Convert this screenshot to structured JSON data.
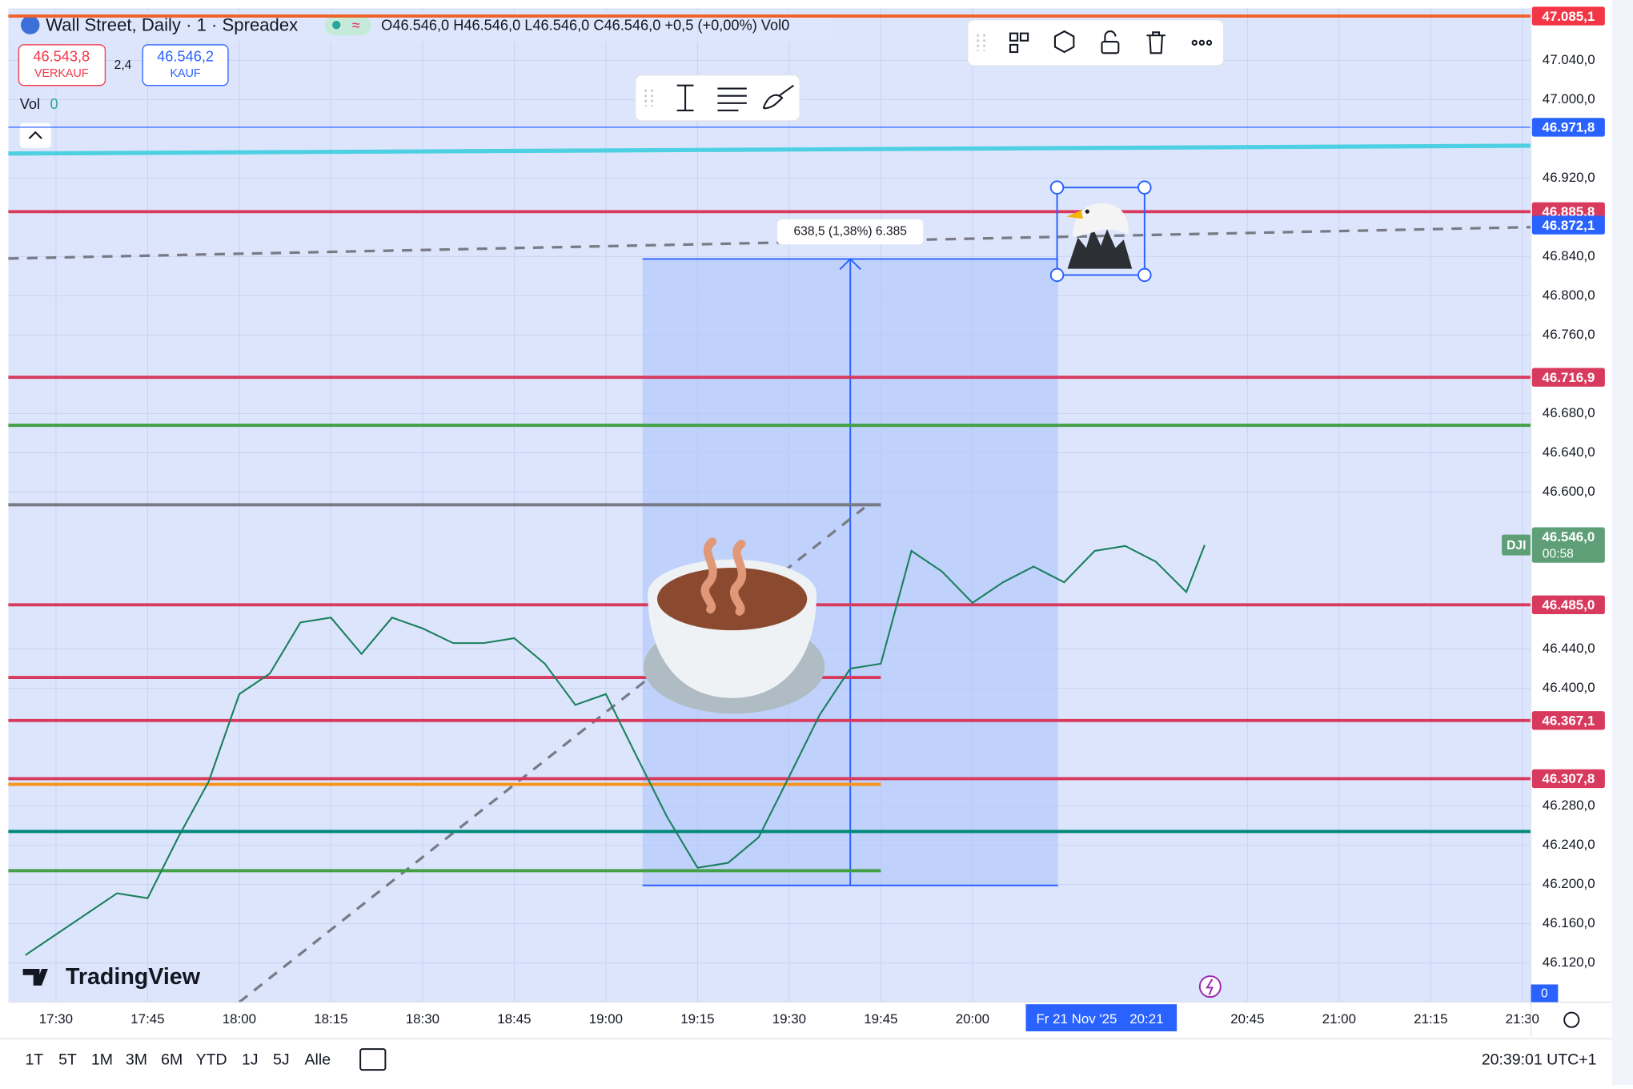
{
  "header": {
    "symbol": "Wall Street, Daily · 1 · Spreadex",
    "ohlc": "O46.546,0 H46.546,0 L46.546,0 C46.546,0 +0,5 (+0,00%) Vol0"
  },
  "trade": {
    "sell_price": "46.543,8",
    "sell_label": "VERKAUF",
    "spread": "2,4",
    "buy_price": "46.546,2",
    "buy_label": "KAUF"
  },
  "volume_legend": {
    "label": "Vol",
    "value": "0"
  },
  "volume_scale": "0",
  "logo": "TradingView",
  "ranges": [
    "1T",
    "5T",
    "1M",
    "3M",
    "6M",
    "YTD",
    "1J",
    "5J",
    "Alle"
  ],
  "clock": "20:39:01 UTC+1",
  "chart_data": {
    "type": "line",
    "x": [
      1045,
      1050,
      1055,
      1060,
      1065,
      1070,
      1075,
      1080,
      1085,
      1090,
      1095,
      1100,
      1105,
      1110,
      1115,
      1120,
      1125,
      1130,
      1135,
      1140,
      1145,
      1150,
      1155,
      1160,
      1165,
      1170,
      1175,
      1180,
      1185,
      1190,
      1195,
      1200,
      1205,
      1210,
      1215,
      1220,
      1225,
      1230,
      1235,
      1238
    ],
    "series": [
      {
        "name": "DJI",
        "color": "#1a7f5e",
        "values": [
          46128,
          46149,
          46170,
          46191,
          46186,
          46248,
          46305,
          46394,
          46415,
          46467,
          46472,
          46435,
          46472,
          46461,
          46446,
          46446,
          46451,
          46425,
          46383,
          46394,
          46331,
          46269,
          46217,
          46222,
          46248,
          46310,
          46373,
          46420,
          46425,
          46540,
          46519,
          46487,
          46508,
          46524,
          46508,
          46540,
          46545,
          46529,
          46498,
          46546
        ]
      }
    ],
    "xlim": [
      1042.2,
      1291.4
    ],
    "xticks": [
      {
        "value": 1050,
        "label": "17:30"
      },
      {
        "value": 1065,
        "label": "17:45"
      },
      {
        "value": 1080,
        "label": "18:00"
      },
      {
        "value": 1095,
        "label": "18:15"
      },
      {
        "value": 1110,
        "label": "18:30"
      },
      {
        "value": 1125,
        "label": "18:45"
      },
      {
        "value": 1140,
        "label": "19:00"
      },
      {
        "value": 1155,
        "label": "19:15"
      },
      {
        "value": 1170,
        "label": "19:30"
      },
      {
        "value": 1185,
        "label": "19:45"
      },
      {
        "value": 1200,
        "label": "20:00"
      },
      {
        "value": 1245,
        "label": "20:45"
      },
      {
        "value": 1260,
        "label": "21:00"
      },
      {
        "value": 1275,
        "label": "21:15"
      },
      {
        "value": 1290,
        "label": "21:30"
      }
    ],
    "ylim": [
      46080,
      47093
    ],
    "yticks": [
      {
        "value": 47040,
        "label": "47.040,0"
      },
      {
        "value": 47000,
        "label": "47.000,0"
      },
      {
        "value": 46920,
        "label": "46.920,0"
      },
      {
        "value": 46840,
        "label": "46.840,0"
      },
      {
        "value": 46800,
        "label": "46.800,0"
      },
      {
        "value": 46760,
        "label": "46.760,0"
      },
      {
        "value": 46680,
        "label": "46.680,0"
      },
      {
        "value": 46640,
        "label": "46.640,0"
      },
      {
        "value": 46600,
        "label": "46.600,0"
      },
      {
        "value": 46440,
        "label": "46.440,0"
      },
      {
        "value": 46400,
        "label": "46.400,0"
      },
      {
        "value": 46280,
        "label": "46.280,0"
      },
      {
        "value": 46240,
        "label": "46.240,0"
      },
      {
        "value": 46200,
        "label": "46.200,0"
      },
      {
        "value": 46160,
        "label": "46.160,0"
      },
      {
        "value": 46120,
        "label": "46.120,0"
      }
    ],
    "grid": true,
    "price_lines": [
      {
        "value": 47085.1,
        "label": "47.085,1",
        "color": "#f0602a"
      },
      {
        "value": 46971.8,
        "label": "46.971,8",
        "color": "#2962ff"
      },
      {
        "value": 46885.8,
        "label": "46.885,8",
        "color": "#d83a5e"
      },
      {
        "value": 46716.9,
        "label": "46.716,9",
        "color": "#d83a5e"
      },
      {
        "value": 46668,
        "color": "#43a047"
      },
      {
        "value": 46587,
        "color": "#787b86",
        "end": 1185
      },
      {
        "value": 46485.0,
        "label": "46.485,0",
        "color": "#d83a5e"
      },
      {
        "value": 46411,
        "color": "#d83a5e",
        "end": 1185
      },
      {
        "value": 46367.1,
        "label": "46.367,1",
        "color": "#d83a5e"
      },
      {
        "value": 46307.8,
        "label": "46.307,8",
        "color": "#d83a5e"
      },
      {
        "value": 46302,
        "color": "#f7931a",
        "end": 1185
      },
      {
        "value": 46254,
        "color": "#00897b"
      },
      {
        "value": 46214,
        "color": "#43a047",
        "end": 1185
      }
    ],
    "axis_labels": [
      {
        "value": 46872.1,
        "label": "46.872,1",
        "color": "#2962ff"
      }
    ],
    "trend_lines": [
      {
        "t1": 1042.2,
        "p1": 46945,
        "t2": 1291.4,
        "p2": 46953,
        "color": "#4dd0e1",
        "dash": false
      },
      {
        "t1": 1042.2,
        "p1": 46838,
        "t2": 1291.4,
        "p2": 46870,
        "color": "#787b86",
        "dash": true
      },
      {
        "t1": 1080,
        "p1": 46080,
        "t2": 1182.3,
        "p2": 46584,
        "color": "#787b86",
        "dash": true
      }
    ],
    "measure": {
      "from": 1146,
      "to": 1214,
      "high": 46837.5,
      "low": 46199,
      "label": "638,5 (1,38%) 6.385"
    },
    "last_price": {
      "value": 46546.0,
      "label": "46.546,0",
      "countdown": "00:58"
    },
    "crosshair": {
      "value": 1221,
      "date": "Fr 21 Nov '25",
      "time": "20:21"
    }
  }
}
